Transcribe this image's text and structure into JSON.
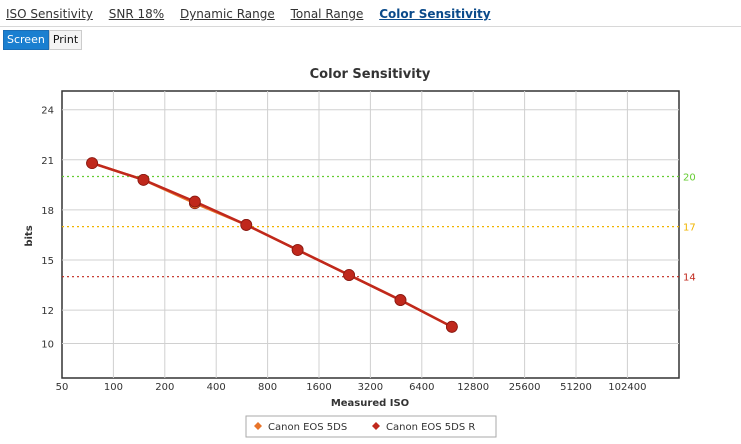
{
  "tabs": [
    {
      "label": "ISO Sensitivity",
      "active": false
    },
    {
      "label": "SNR 18%",
      "active": false
    },
    {
      "label": "Dynamic Range",
      "active": false
    },
    {
      "label": "Tonal Range",
      "active": false
    },
    {
      "label": "Color Sensitivity",
      "active": true
    }
  ],
  "view_toggle": {
    "screen_label": "Screen",
    "print_label": "Print",
    "selected": "Screen"
  },
  "colors": {
    "accent": "#1a7fd0",
    "series_5ds": "#e8742a",
    "series_5dsr": "#c0281c"
  },
  "chart_data": {
    "type": "line",
    "title": "Color Sensitivity",
    "xlabel": "Measured ISO",
    "ylabel": "bits",
    "x_scale": "log2",
    "x_ticks": [
      "50",
      "100",
      "200",
      "400",
      "800",
      "1600",
      "3200",
      "6400",
      "12800",
      "25600",
      "51200",
      "102400"
    ],
    "y_ticks": [
      "24",
      "21",
      "18",
      "15",
      "12",
      "10"
    ],
    "ylim_top": 25,
    "grid": true,
    "reference_lines": [
      {
        "value": 20,
        "label": "20",
        "color": "#66cc33"
      },
      {
        "value": 17,
        "label": "17",
        "color": "#f0b400"
      },
      {
        "value": 14,
        "label": "14",
        "color": "#c0281c"
      }
    ],
    "series": [
      {
        "name": "Canon EOS 5DS",
        "color": "#e8742a",
        "points": [
          [
            75,
            20.8
          ],
          [
            150,
            19.8
          ],
          [
            300,
            18.4
          ],
          [
            600,
            17.1
          ],
          [
            1200,
            15.6
          ],
          [
            2400,
            14.1
          ],
          [
            4800,
            12.6
          ],
          [
            9600,
            11.0
          ]
        ]
      },
      {
        "name": "Canon EOS 5DS R",
        "color": "#c0281c",
        "points": [
          [
            75,
            20.8
          ],
          [
            150,
            19.8
          ],
          [
            300,
            18.5
          ],
          [
            600,
            17.1
          ],
          [
            1200,
            15.6
          ],
          [
            2400,
            14.1
          ],
          [
            4800,
            12.6
          ],
          [
            9600,
            11.0
          ]
        ]
      }
    ],
    "legend_position": "bottom-center"
  }
}
